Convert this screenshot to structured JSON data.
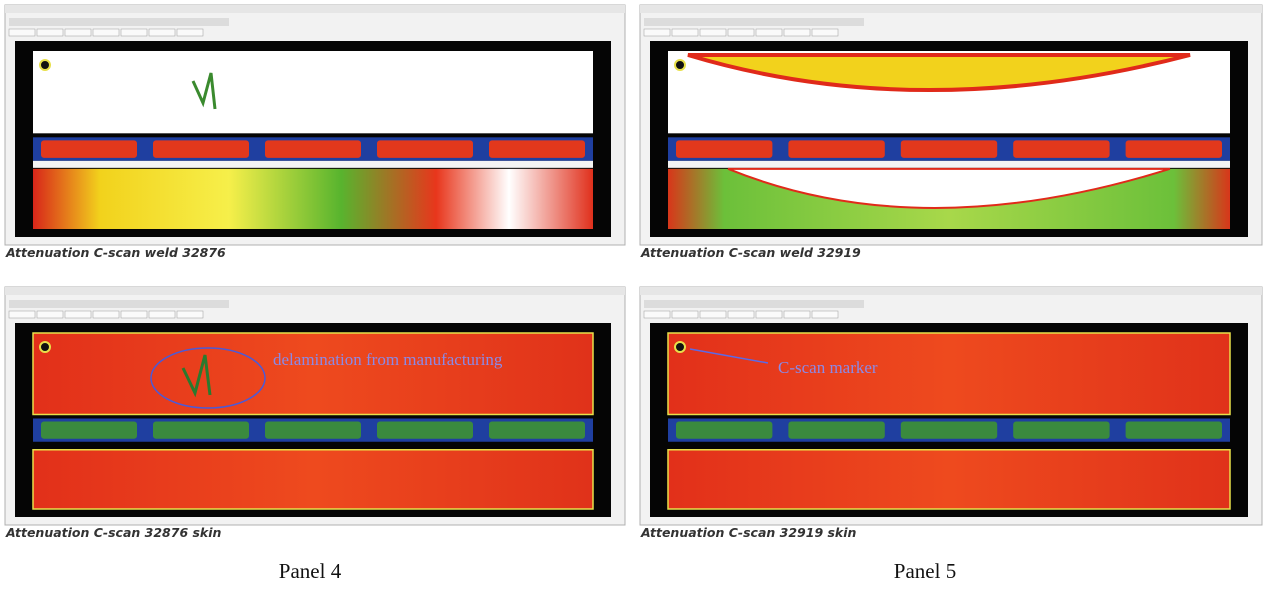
{
  "panels": [
    {
      "caption": "Attenuation C-scan weld 32876"
    },
    {
      "caption": "Attenuation C-scan weld 32919"
    },
    {
      "caption": "Attenuation C-scan 32876 skin",
      "annotation": "delamination from manufacturing"
    },
    {
      "caption": "Attenuation C-scan 32919 skin",
      "annotation": "C-scan marker"
    }
  ],
  "panel_labels": [
    "Panel 4",
    "Panel 5"
  ]
}
